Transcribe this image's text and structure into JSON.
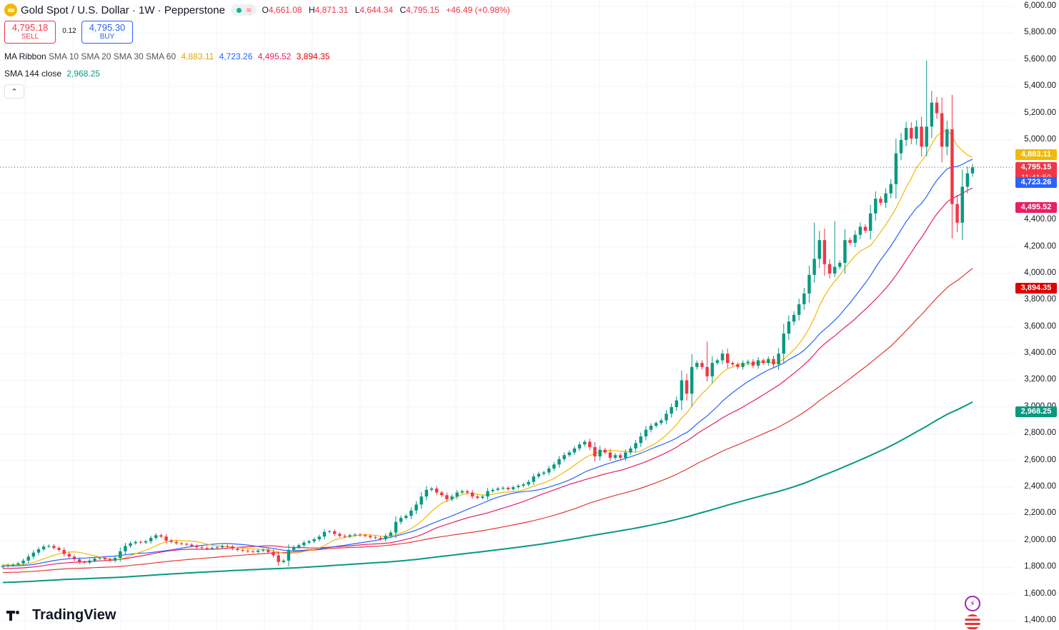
{
  "header": {
    "title": "Gold Spot / U.S. Dollar · 1W · Pepperstone",
    "status_wave": "≈",
    "ohlc": [
      {
        "label": "O",
        "value": "4,661.08"
      },
      {
        "label": "H",
        "value": "4,871.31"
      },
      {
        "label": "L",
        "value": "4,644.34"
      },
      {
        "label": "C",
        "value": "4,795.15"
      }
    ],
    "change": "+46.49 (+0.98%)"
  },
  "trade": {
    "sell_price": "4,795.18",
    "sell_label": "SELL",
    "spread": "0.12",
    "buy_price": "4,795.30",
    "buy_label": "BUY"
  },
  "indicators": {
    "ribbon_name": "MA Ribbon",
    "ribbon_params": "SMA 10 SMA 20 SMA 30 SMA 60",
    "ribbon_values": [
      "4,883.11",
      "4,723.26",
      "4,495.52",
      "3,894.35"
    ],
    "sma_name": "SMA 144 close",
    "sma_value": "2,968.25"
  },
  "collapse_icon": "chevron-up",
  "price_badges": [
    {
      "text": "4,883.11",
      "color": "#f0b90b",
      "value": 4883.11
    },
    {
      "text": "4,795.15",
      "text2": "11:41:50",
      "color": "#f23645",
      "value": 4795.15
    },
    {
      "text": "4,723.26",
      "color": "#2962ff",
      "value": 4723.26
    },
    {
      "text": "4,495.52",
      "color": "#e91e63",
      "value": 4495.52
    },
    {
      "text": "3,894.35",
      "color": "#e00000",
      "value": 3894.35
    },
    {
      "text": "2,968.25",
      "color": "#089981",
      "value": 2968.25
    }
  ],
  "colors": {
    "up": "#089981",
    "down": "#f23645",
    "ma10": "#f0b90b",
    "ma20": "#2962ff",
    "ma30": "#e91e63",
    "ma60": "#e53935",
    "sma144": "#089981"
  },
  "brand": "TradingView",
  "side_icons": [
    "lightning-icon",
    "us-flag-icon"
  ],
  "chart_data": {
    "type": "candlestick",
    "y_axis": {
      "min": 1300,
      "max": 6050,
      "ticks": [
        1400,
        1600,
        1800,
        2000,
        2200,
        2400,
        2600,
        2800,
        3000,
        3200,
        3400,
        3600,
        3800,
        4000,
        4200,
        4400,
        4600,
        4800,
        5000,
        5200,
        5400,
        5600,
        5800,
        6000
      ],
      "tick_labels": [
        "1,400.00",
        "1,600.00",
        "1,800.00",
        "2,000.00",
        "2,200.00",
        "2,400.00",
        "2,600.00",
        "2,800.00",
        "3,000.00",
        "3,200.00",
        "3,400.00",
        "3,600.00",
        "3,800.00",
        "4,000.00",
        "4,200.00",
        "4,400.00",
        "",
        "",
        "5,000.00",
        "5,200.00",
        "5,400.00",
        "5,600.00",
        "5,800.00",
        "6,000.00"
      ]
    },
    "grid": true,
    "last_close": 4795.15,
    "close": [
      1810,
      1815,
      1820,
      1830,
      1850,
      1880,
      1910,
      1935,
      1955,
      1960,
      1945,
      1930,
      1900,
      1880,
      1860,
      1840,
      1835,
      1850,
      1865,
      1870,
      1860,
      1850,
      1870,
      1920,
      1960,
      1980,
      1990,
      1985,
      1995,
      2020,
      2040,
      2030,
      2000,
      1990,
      1980,
      1975,
      1970,
      1960,
      1950,
      1945,
      1940,
      1945,
      1950,
      1960,
      1955,
      1940,
      1930,
      1925,
      1920,
      1915,
      1925,
      1930,
      1915,
      1890,
      1840,
      1850,
      1930,
      1950,
      1965,
      1985,
      1995,
      2010,
      2030,
      2065,
      2070,
      2050,
      2035,
      2030,
      2040,
      2045,
      2040,
      2035,
      2025,
      2020,
      2010,
      2035,
      2060,
      2140,
      2170,
      2185,
      2225,
      2270,
      2330,
      2380,
      2390,
      2360,
      2340,
      2310,
      2330,
      2360,
      2370,
      2360,
      2330,
      2320,
      2330,
      2370,
      2380,
      2390,
      2395,
      2385,
      2400,
      2410,
      2420,
      2440,
      2480,
      2500,
      2510,
      2540,
      2570,
      2610,
      2640,
      2660,
      2690,
      2720,
      2740,
      2700,
      2630,
      2680,
      2660,
      2620,
      2640,
      2620,
      2660,
      2690,
      2730,
      2780,
      2830,
      2860,
      2880,
      2900,
      2950,
      3000,
      3050,
      3200,
      3100,
      3300,
      3330,
      3300,
      3230,
      3330,
      3350,
      3400,
      3330,
      3320,
      3300,
      3330,
      3340,
      3310,
      3350,
      3330,
      3360,
      3320,
      3400,
      3550,
      3640,
      3690,
      3770,
      3850,
      3990,
      4110,
      4250,
      4070,
      4000,
      4050,
      4080,
      4250,
      4230,
      4290,
      4350,
      4320,
      4450,
      4560,
      4530,
      4600,
      4670,
      4900,
      5000,
      5090,
      5010,
      5100,
      4950,
      5100,
      5280,
      5200,
      4950,
      5080,
      4520,
      4380,
      4650,
      4750,
      4795
    ]
  }
}
